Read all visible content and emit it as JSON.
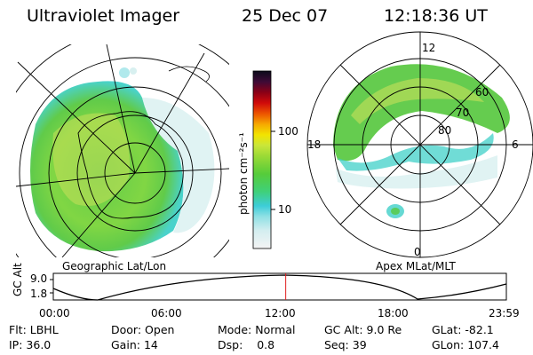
{
  "header": {
    "instrument": "Ultraviolet Imager",
    "date": "25 Dec 07",
    "time": "12:18:36 UT"
  },
  "colors": {
    "aurora_bright": "#c8e05a",
    "aurora_green": "#58c840",
    "aurora_cyan": "#40d0c8",
    "aurora_faint": "#d8f0f0",
    "grid": "#000000",
    "marker": "#e02020"
  },
  "left_map": {
    "caption": "Geographic Lat/Lon"
  },
  "colorbar": {
    "label": "photon cm⁻²s⁻¹",
    "ticks": [
      "100",
      "10"
    ],
    "scale": "log",
    "range": [
      2,
      600
    ],
    "colors": [
      "#f4f4f4",
      "#d4eef0",
      "#8fe0e4",
      "#3dcdd8",
      "#3fd07a",
      "#56cc3a",
      "#9ada36",
      "#c9e63a",
      "#f2e400",
      "#f6a800",
      "#ec5400",
      "#d00a0a",
      "#8a0016",
      "#3d0a36",
      "#0c0a1a"
    ]
  },
  "right_map": {
    "caption": "Apex MLat/MLT",
    "mlt_labels": {
      "top": "12",
      "left": "18",
      "right": "6",
      "bottom": "0"
    },
    "lat_labels": [
      "60",
      "70",
      "80"
    ]
  },
  "altitude_plot": {
    "ylabel": "GC Alt",
    "yticks": [
      "9.0",
      "1.8"
    ],
    "xticks": [
      "00:00",
      "06:00",
      "12:00",
      "18:00",
      "23:59"
    ],
    "current_time_fraction": 0.513
  },
  "info": {
    "flt_label": "Flt:",
    "flt_value": "LBHL",
    "ip_label": "IP:",
    "ip_value": "36.0",
    "door_label": "Door:",
    "door_value": "Open",
    "gain_label": "Gain:",
    "gain_value": "14",
    "mode_label": "Mode:",
    "mode_value": "Normal",
    "dsp_label": "Dsp:",
    "dsp_value": "0.8",
    "gcalt_label": "GC Alt:",
    "gcalt_value": "9.0 Re",
    "seq_label": "Seq:",
    "seq_value": "39",
    "glat_label": "GLat:",
    "glat_value": "-82.1",
    "glon_label": "GLon:",
    "glon_value": "107.4"
  }
}
